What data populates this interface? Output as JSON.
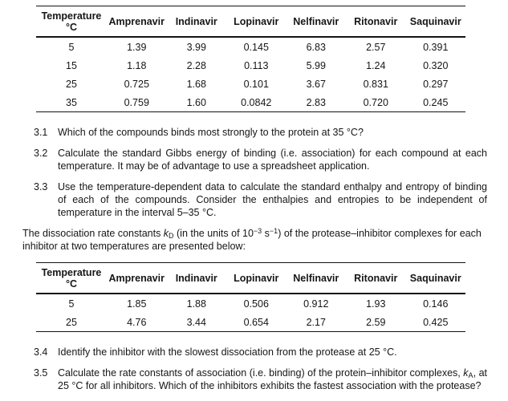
{
  "page": {
    "background": "#ffffff",
    "text_color": "#161616"
  },
  "table1": {
    "header": {
      "temp_line1": "Temperature",
      "temp_line2": "°C"
    },
    "columns": [
      "Amprenavir",
      "Indinavir",
      "Lopinavir",
      "Nelfinavir",
      "Ritonavir",
      "Saquinavir"
    ],
    "rows": [
      {
        "temp": "5",
        "values": [
          "1.39",
          "3.99",
          "0.145",
          "6.83",
          "2.57",
          "0.391"
        ]
      },
      {
        "temp": "15",
        "values": [
          "1.18",
          "2.28",
          "0.113",
          "5.99",
          "1.24",
          "0.320"
        ]
      },
      {
        "temp": "25",
        "values": [
          "0.725",
          "1.68",
          "0.101",
          "3.67",
          "0.831",
          "0.297"
        ]
      },
      {
        "temp": "35",
        "values": [
          "0.759",
          "1.60",
          "0.0842",
          "2.83",
          "0.720",
          "0.245"
        ]
      }
    ]
  },
  "questions_a": [
    {
      "num": "3.1",
      "text": "Which of the compounds binds most strongly to the protein at 35 °C?"
    },
    {
      "num": "3.2",
      "text": "Calculate the standard Gibbs energy of binding (i.e. association) for each compound at each temperature. It may be of advantage to use a spreadsheet application."
    },
    {
      "num": "3.3",
      "text": "Use the temperature-dependent data to calculate the standard enthalpy and entropy of binding of each of the compounds. Consider the enthalpies and entropies to be independent of temperature in the interval 5–35 °C."
    }
  ],
  "paragraph": {
    "rich": "The dissociation rate constants <i>k</i><sub>D</sub> (in the units of 10<sup>−3</sup> s<sup>−1</sup>) of the protease–inhibitor complexes for each inhibitor at two temperatures are presented below:"
  },
  "table2": {
    "header": {
      "temp_line1": "Temperature",
      "temp_line2": "°C"
    },
    "columns": [
      "Amprenavir",
      "Indinavir",
      "Lopinavir",
      "Nelfinavir",
      "Ritonavir",
      "Saquinavir"
    ],
    "rows": [
      {
        "temp": "5",
        "values": [
          "1.85",
          "1.88",
          "0.506",
          "0.912",
          "1.93",
          "0.146"
        ]
      },
      {
        "temp": "25",
        "values": [
          "4.76",
          "3.44",
          "0.654",
          "2.17",
          "2.59",
          "0.425"
        ]
      }
    ]
  },
  "questions_b": [
    {
      "num": "3.4",
      "text": "Identify the inhibitor with the slowest dissociation from the protease at 25 °C."
    },
    {
      "num": "3.5",
      "rich": "<i>k</i><sub>A</sub>, at 25 °C for all inhibitors. Which of the inhibitors exhibits the fastest association with the protease?",
      "rich_full": "Calculate the rate constants of association (i.e. binding) of the protein–inhibitor complexes, <i>k</i><sub>A</sub>, at 25 °C for all inhibitors. Which of the inhibitors exhibits the fastest association with the protease?"
    }
  ]
}
